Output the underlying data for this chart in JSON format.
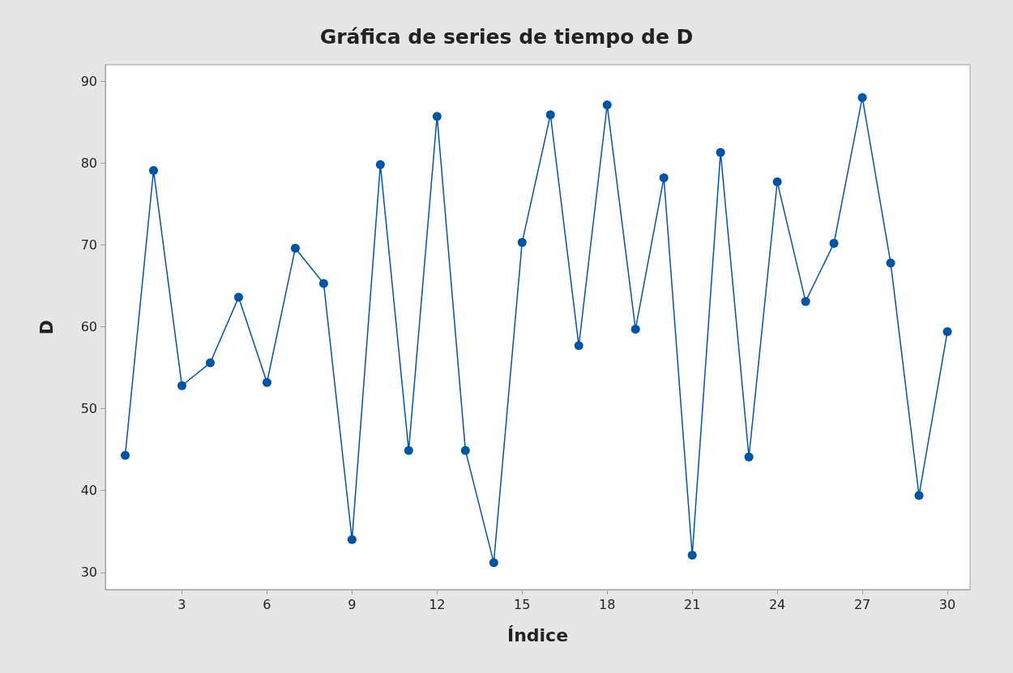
{
  "chart_data": {
    "type": "line",
    "title": "Gráfica de series de tiempo de D",
    "xlabel": "Índice",
    "ylabel": "D",
    "x": [
      1,
      2,
      3,
      4,
      5,
      6,
      7,
      8,
      9,
      10,
      11,
      12,
      13,
      14,
      15,
      16,
      17,
      18,
      19,
      20,
      21,
      22,
      23,
      24,
      25,
      26,
      27,
      28,
      29,
      30
    ],
    "series": [
      {
        "color": "#0054a6",
        "values": [
          44.3,
          79.1,
          52.8,
          55.6,
          63.6,
          53.2,
          69.6,
          65.3,
          34.0,
          79.8,
          44.9,
          85.7,
          44.9,
          31.2,
          70.3,
          85.9,
          57.7,
          87.1,
          59.7,
          78.2,
          32.1,
          81.3,
          44.1,
          77.7,
          63.1,
          70.2,
          88.0,
          67.8,
          39.4,
          59.4
        ]
      }
    ],
    "xlim": [
      0.3,
      30.8
    ],
    "xticks": [
      3,
      6,
      9,
      12,
      15,
      18,
      21,
      24,
      27,
      30
    ],
    "ylim": [
      27.9,
      92
    ],
    "yticks": [
      30,
      40,
      50,
      60,
      70,
      80,
      90
    ],
    "marker": "circle",
    "line_style": "solid"
  }
}
